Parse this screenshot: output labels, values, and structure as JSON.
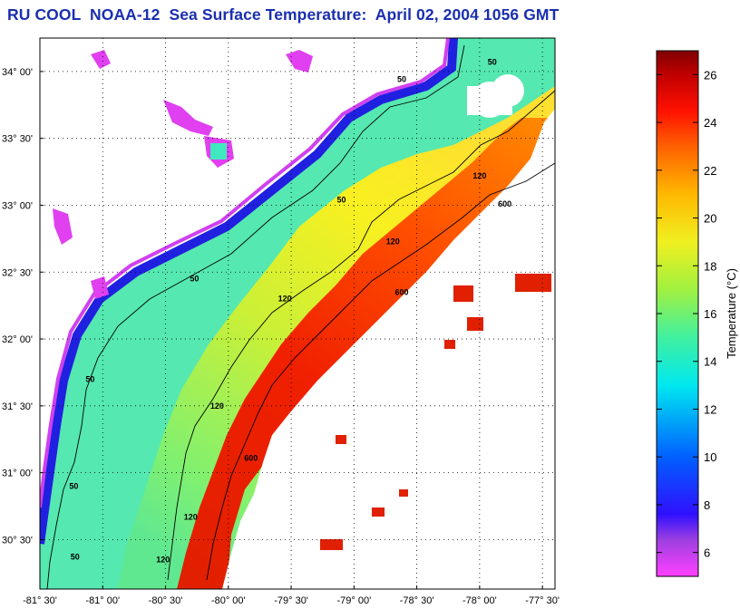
{
  "title": "RU COOL  NOAA-12  Sea Surface Temperature:  April 02, 2004 1056 GMT",
  "map": {
    "lat_range": [
      30.13,
      34.25
    ],
    "lon_range": [
      -81.5,
      -77.4
    ],
    "lat_ticks": [
      {
        "value": 34.0,
        "label": "34° 00'"
      },
      {
        "value": 33.5,
        "label": "33° 30'"
      },
      {
        "value": 33.0,
        "label": "33° 00'"
      },
      {
        "value": 32.5,
        "label": "32° 30'"
      },
      {
        "value": 32.0,
        "label": "32° 00'"
      },
      {
        "value": 31.5,
        "label": "31° 30'"
      },
      {
        "value": 31.0,
        "label": "31° 00'"
      },
      {
        "value": 30.5,
        "label": "30° 30'"
      }
    ],
    "lon_ticks": [
      {
        "value": -81.5,
        "label": "-81° 30'"
      },
      {
        "value": -81.0,
        "label": "-81° 00'"
      },
      {
        "value": -80.5,
        "label": "-80° 30'"
      },
      {
        "value": -80.0,
        "label": "-80° 00'"
      },
      {
        "value": -79.5,
        "label": "-79° 30'"
      },
      {
        "value": -79.0,
        "label": "-79° 00'"
      },
      {
        "value": -78.5,
        "label": "-78° 30'"
      },
      {
        "value": -78.0,
        "label": "-78° 00'"
      },
      {
        "value": -77.5,
        "label": "-77° 30'"
      }
    ],
    "grid": "dotted",
    "isobath_labels": [
      {
        "text": "50",
        "lon": -79.1,
        "lat": 33.02
      },
      {
        "text": "50",
        "lon": -80.27,
        "lat": 32.43
      },
      {
        "text": "50",
        "lon": -81.1,
        "lat": 31.68
      },
      {
        "text": "50",
        "lon": -81.23,
        "lat": 30.88
      },
      {
        "text": "50",
        "lon": -81.22,
        "lat": 30.35
      },
      {
        "text": "50",
        "lon": -78.62,
        "lat": 33.92
      },
      {
        "text": "50",
        "lon": -77.9,
        "lat": 34.05
      },
      {
        "text": "120",
        "lon": -79.55,
        "lat": 32.28
      },
      {
        "text": "120",
        "lon": -80.09,
        "lat": 31.48
      },
      {
        "text": "120",
        "lon": -80.3,
        "lat": 30.65
      },
      {
        "text": "120",
        "lon": -80.52,
        "lat": 30.33
      },
      {
        "text": "120",
        "lon": -78.69,
        "lat": 32.71
      },
      {
        "text": "120",
        "lon": -78.0,
        "lat": 33.2
      },
      {
        "text": "600",
        "lon": -78.62,
        "lat": 32.33
      },
      {
        "text": "600",
        "lon": -79.82,
        "lat": 31.09
      },
      {
        "text": "600",
        "lon": -77.8,
        "lat": 32.99
      }
    ]
  },
  "colorbar": {
    "label": "Temperature (°C)",
    "range": [
      5,
      27
    ],
    "ticks": [
      {
        "value": 6,
        "label": "6"
      },
      {
        "value": 8,
        "label": "8"
      },
      {
        "value": 10,
        "label": "10"
      },
      {
        "value": 12,
        "label": "12"
      },
      {
        "value": 14,
        "label": "14"
      },
      {
        "value": 16,
        "label": "16"
      },
      {
        "value": 18,
        "label": "18"
      },
      {
        "value": 20,
        "label": "20"
      },
      {
        "value": 22,
        "label": "22"
      },
      {
        "value": 24,
        "label": "24"
      },
      {
        "value": 26,
        "label": "26"
      }
    ],
    "stops": [
      {
        "value": 5,
        "color": "#ff40ff"
      },
      {
        "value": 6.5,
        "color": "#a040e0"
      },
      {
        "value": 7.6,
        "color": "#3010ff"
      },
      {
        "value": 10,
        "color": "#0060ff"
      },
      {
        "value": 13,
        "color": "#00e8f0"
      },
      {
        "value": 15,
        "color": "#40f0a0"
      },
      {
        "value": 17,
        "color": "#a0f040"
      },
      {
        "value": 19,
        "color": "#f0f020"
      },
      {
        "value": 21,
        "color": "#ffb800"
      },
      {
        "value": 23,
        "color": "#ff6000"
      },
      {
        "value": 24.5,
        "color": "#ff1000"
      },
      {
        "value": 26,
        "color": "#c00000"
      },
      {
        "value": 27,
        "color": "#800000"
      }
    ]
  }
}
